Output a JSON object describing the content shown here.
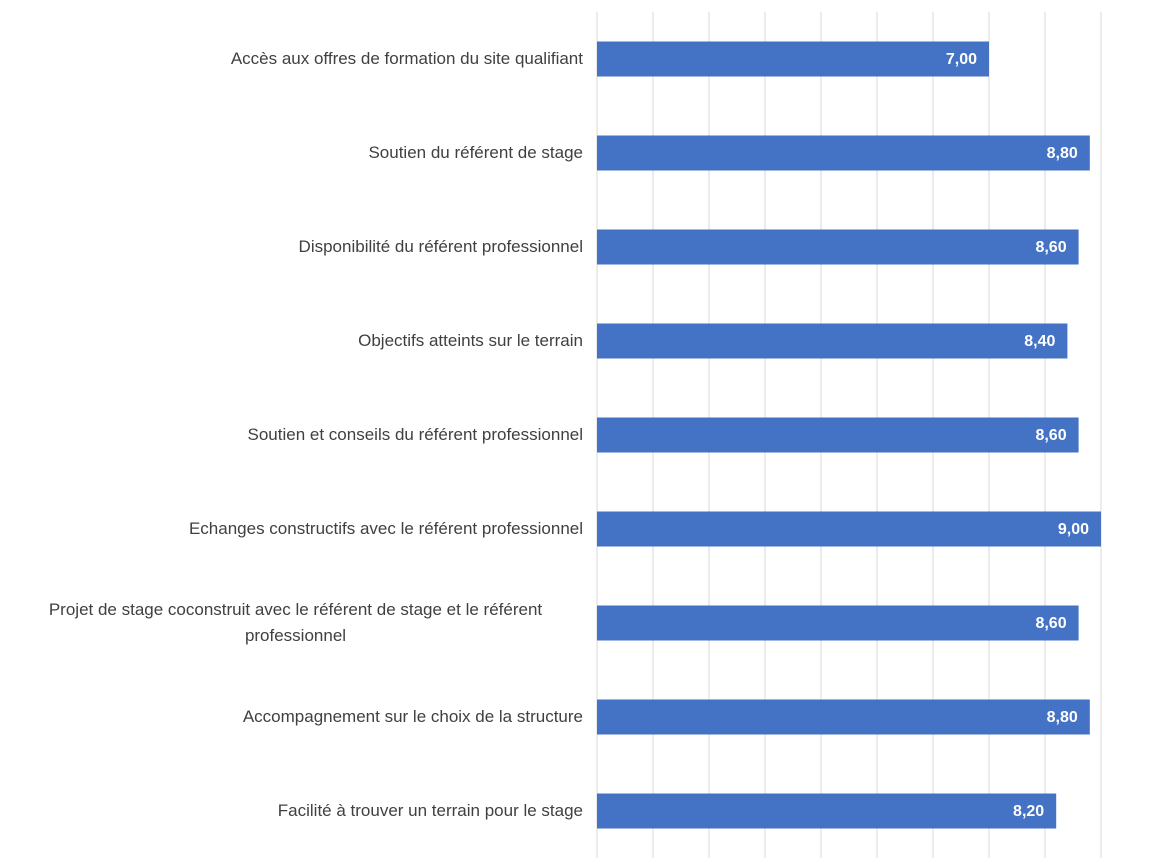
{
  "chart_data": {
    "type": "bar",
    "orientation": "horizontal",
    "categories": [
      "Accès aux offres de formation du site qualifiant",
      "Soutien du référent de stage",
      "Disponibilité du référent professionnel",
      "Objectifs atteints sur le terrain",
      "Soutien et conseils du référent professionnel",
      "Echanges constructifs avec le référent professionnel",
      "Projet de stage coconstruit avec le référent de stage et le référent professionnel",
      "Accompagnement sur le choix de la structure",
      "Facilité à trouver un terrain pour le stage"
    ],
    "values": [
      7,
      8.8,
      8.6,
      8.4,
      8.6,
      9,
      8.6,
      8.8,
      8.2
    ],
    "value_labels": [
      "7,00",
      "8,80",
      "8,60",
      "8,40",
      "8,60",
      "9,00",
      "8,60",
      "8,80",
      "8,20"
    ],
    "color": "#4472c4",
    "xlim": [
      0,
      9
    ],
    "xticks": [
      0,
      1,
      2,
      3,
      4,
      5,
      6,
      7,
      8,
      9
    ],
    "grid": true
  }
}
